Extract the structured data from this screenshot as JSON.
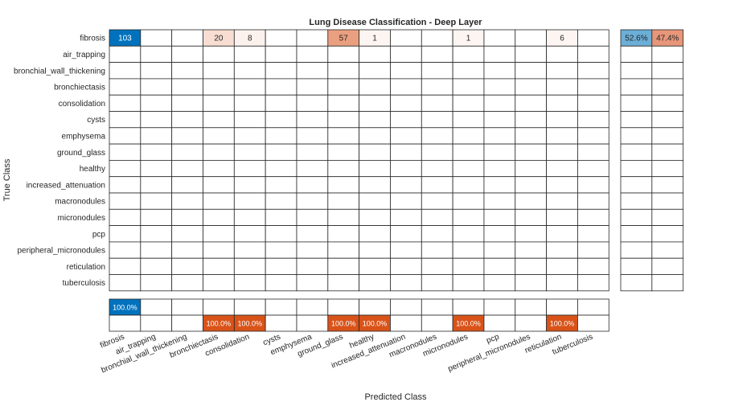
{
  "chart_data": {
    "type": "heatmap",
    "title": "Lung Disease Classification - Deep Layer",
    "xlabel": "Predicted Class",
    "ylabel": "True Class",
    "classes": [
      "fibrosis",
      "air_trapping",
      "bronchial_wall_thickening",
      "bronchiectasis",
      "consolidation",
      "cysts",
      "emphysema",
      "ground_glass",
      "healthy",
      "increased_attenuation",
      "macronodules",
      "micronodules",
      "pcp",
      "peripheral_micronodules",
      "reticulation",
      "tuberculosis"
    ],
    "matrix": [
      [
        103,
        0,
        0,
        20,
        8,
        0,
        0,
        57,
        1,
        0,
        0,
        1,
        0,
        0,
        6,
        0
      ],
      [
        0,
        0,
        0,
        0,
        0,
        0,
        0,
        0,
        0,
        0,
        0,
        0,
        0,
        0,
        0,
        0
      ],
      [
        0,
        0,
        0,
        0,
        0,
        0,
        0,
        0,
        0,
        0,
        0,
        0,
        0,
        0,
        0,
        0
      ],
      [
        0,
        0,
        0,
        0,
        0,
        0,
        0,
        0,
        0,
        0,
        0,
        0,
        0,
        0,
        0,
        0
      ],
      [
        0,
        0,
        0,
        0,
        0,
        0,
        0,
        0,
        0,
        0,
        0,
        0,
        0,
        0,
        0,
        0
      ],
      [
        0,
        0,
        0,
        0,
        0,
        0,
        0,
        0,
        0,
        0,
        0,
        0,
        0,
        0,
        0,
        0
      ],
      [
        0,
        0,
        0,
        0,
        0,
        0,
        0,
        0,
        0,
        0,
        0,
        0,
        0,
        0,
        0,
        0
      ],
      [
        0,
        0,
        0,
        0,
        0,
        0,
        0,
        0,
        0,
        0,
        0,
        0,
        0,
        0,
        0,
        0
      ],
      [
        0,
        0,
        0,
        0,
        0,
        0,
        0,
        0,
        0,
        0,
        0,
        0,
        0,
        0,
        0,
        0
      ],
      [
        0,
        0,
        0,
        0,
        0,
        0,
        0,
        0,
        0,
        0,
        0,
        0,
        0,
        0,
        0,
        0
      ],
      [
        0,
        0,
        0,
        0,
        0,
        0,
        0,
        0,
        0,
        0,
        0,
        0,
        0,
        0,
        0,
        0
      ],
      [
        0,
        0,
        0,
        0,
        0,
        0,
        0,
        0,
        0,
        0,
        0,
        0,
        0,
        0,
        0,
        0
      ],
      [
        0,
        0,
        0,
        0,
        0,
        0,
        0,
        0,
        0,
        0,
        0,
        0,
        0,
        0,
        0,
        0
      ],
      [
        0,
        0,
        0,
        0,
        0,
        0,
        0,
        0,
        0,
        0,
        0,
        0,
        0,
        0,
        0,
        0
      ],
      [
        0,
        0,
        0,
        0,
        0,
        0,
        0,
        0,
        0,
        0,
        0,
        0,
        0,
        0,
        0,
        0
      ],
      [
        0,
        0,
        0,
        0,
        0,
        0,
        0,
        0,
        0,
        0,
        0,
        0,
        0,
        0,
        0,
        0
      ]
    ],
    "row_summary": [
      {
        "correct": "52.6%",
        "incorrect": "47.4%"
      },
      null,
      null,
      null,
      null,
      null,
      null,
      null,
      null,
      null,
      null,
      null,
      null,
      null,
      null,
      null
    ],
    "column_summary": [
      {
        "correct": "100.0%",
        "incorrect": null
      },
      null,
      null,
      {
        "correct": null,
        "incorrect": "100.0%"
      },
      {
        "correct": null,
        "incorrect": "100.0%"
      },
      null,
      null,
      {
        "correct": null,
        "incorrect": "100.0%"
      },
      {
        "correct": null,
        "incorrect": "100.0%"
      },
      null,
      null,
      {
        "correct": null,
        "incorrect": "100.0%"
      },
      null,
      null,
      {
        "correct": null,
        "incorrect": "100.0%"
      },
      null
    ],
    "colors": {
      "diagonal": "#0072bd",
      "off_diagonal": "#d95319",
      "summary_correct": "#6baed6",
      "summary_incorrect": "#e8967a",
      "grid": "#262626",
      "text_dark": "#262626",
      "text_light": "#ffffff"
    }
  }
}
